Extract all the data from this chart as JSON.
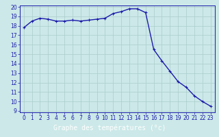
{
  "x": [
    0,
    1,
    2,
    3,
    4,
    5,
    6,
    7,
    8,
    9,
    10,
    11,
    12,
    13,
    14,
    15,
    16,
    17,
    18,
    19,
    20,
    21,
    22,
    23
  ],
  "y": [
    17.8,
    18.5,
    18.8,
    18.7,
    18.5,
    18.5,
    18.6,
    18.5,
    18.6,
    18.7,
    18.8,
    19.3,
    19.5,
    19.8,
    19.8,
    19.4,
    15.5,
    14.3,
    13.2,
    12.1,
    11.5,
    10.6,
    10.0,
    9.5
  ],
  "line_color": "#1a1aaa",
  "marker": "+",
  "marker_color": "#1a1aaa",
  "bg_color": "#cce8e8",
  "grid_color": "#aacccc",
  "xlabel": "Graphe des températures (°c)",
  "xlabel_color": "#ffffff",
  "xlabel_bg": "#2222bb",
  "ylim": [
    9,
    20
  ],
  "xlim": [
    -0.5,
    23.5
  ],
  "yticks": [
    9,
    10,
    11,
    12,
    13,
    14,
    15,
    16,
    17,
    18,
    19,
    20
  ],
  "xticks": [
    0,
    1,
    2,
    3,
    4,
    5,
    6,
    7,
    8,
    9,
    10,
    11,
    12,
    13,
    14,
    15,
    16,
    17,
    18,
    19,
    20,
    21,
    22,
    23
  ],
  "tick_color": "#1a1aaa",
  "tick_fontsize": 5.5,
  "xlabel_fontsize": 7,
  "linewidth": 1.0,
  "markersize": 2.5,
  "spine_color": "#1a1aaa"
}
